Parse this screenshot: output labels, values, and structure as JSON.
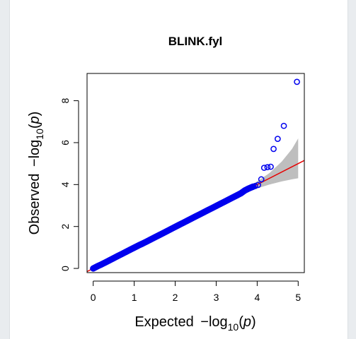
{
  "chart_data": {
    "type": "scatter",
    "title": "BLINK.fyl",
    "xlabel": {
      "prefix": "Expected",
      "text": "−log",
      "sub": "10",
      "arg": "p"
    },
    "ylabel": {
      "prefix": "Observed",
      "text": "−log",
      "sub": "10",
      "arg": "p"
    },
    "xlim": [
      -0.15,
      5.15
    ],
    "ylim": [
      -0.2,
      9.3
    ],
    "x_ticks": [
      0,
      1,
      2,
      3,
      4,
      5
    ],
    "y_ticks": [
      0,
      2,
      4,
      6,
      8
    ],
    "grid": false,
    "series": [
      {
        "points": [
          [
            0.0,
            0.0
          ],
          [
            0.05,
            0.05
          ],
          [
            0.1,
            0.1
          ],
          [
            0.2,
            0.19
          ],
          [
            0.3,
            0.29
          ],
          [
            0.4,
            0.39
          ],
          [
            0.5,
            0.49
          ],
          [
            0.6,
            0.59
          ],
          [
            0.7,
            0.69
          ],
          [
            0.8,
            0.79
          ],
          [
            0.9,
            0.89
          ],
          [
            1.0,
            0.99
          ],
          [
            1.1,
            1.09
          ],
          [
            1.2,
            1.18
          ],
          [
            1.3,
            1.28
          ],
          [
            1.4,
            1.38
          ],
          [
            1.5,
            1.48
          ],
          [
            1.6,
            1.58
          ],
          [
            1.7,
            1.68
          ],
          [
            1.8,
            1.78
          ],
          [
            1.9,
            1.88
          ],
          [
            2.0,
            1.98
          ],
          [
            2.1,
            2.08
          ],
          [
            2.2,
            2.18
          ],
          [
            2.3,
            2.28
          ],
          [
            2.4,
            2.38
          ],
          [
            2.5,
            2.48
          ],
          [
            2.6,
            2.58
          ],
          [
            2.7,
            2.68
          ],
          [
            2.8,
            2.78
          ],
          [
            2.9,
            2.88
          ],
          [
            3.0,
            2.98
          ],
          [
            3.1,
            3.08
          ],
          [
            3.2,
            3.18
          ],
          [
            3.3,
            3.28
          ],
          [
            3.4,
            3.38
          ],
          [
            3.5,
            3.48
          ],
          [
            3.6,
            3.58
          ],
          [
            3.7,
            3.72
          ],
          [
            3.78,
            3.8
          ],
          [
            3.85,
            3.86
          ],
          [
            3.9,
            3.9
          ],
          [
            3.95,
            3.93
          ],
          [
            4.02,
            3.98
          ],
          [
            4.1,
            4.25
          ],
          [
            4.17,
            4.8
          ],
          [
            4.25,
            4.83
          ],
          [
            4.33,
            4.85
          ],
          [
            4.4,
            5.7
          ],
          [
            4.5,
            6.18
          ],
          [
            4.65,
            6.8
          ],
          [
            4.97,
            8.9
          ]
        ]
      }
    ],
    "reference_line": {
      "from": [
        -0.15,
        -0.15
      ],
      "to": [
        5.15,
        5.15
      ]
    },
    "confidence_band": {
      "x": [
        3.7,
        4.0,
        4.3,
        4.6,
        4.85,
        5.0
      ],
      "lower": [
        3.6,
        3.82,
        4.0,
        4.15,
        4.25,
        4.3
      ],
      "upper": [
        3.8,
        4.15,
        4.55,
        5.1,
        5.7,
        6.2
      ]
    },
    "colors": {
      "points": "#0000ee",
      "line": "#e60000",
      "band": "#bebebe"
    }
  }
}
